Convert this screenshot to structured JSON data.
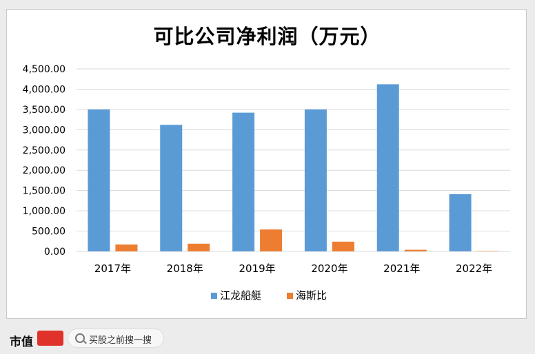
{
  "chart_data": {
    "type": "bar",
    "title": "可比公司净利润（万元）",
    "categories": [
      "2017年",
      "2018年",
      "2019年",
      "2020年",
      "2021年",
      "2022年"
    ],
    "series": [
      {
        "name": "江龙船艇",
        "color": "#5b9bd5",
        "values": [
          3500,
          3120,
          3420,
          3500,
          4120,
          1410
        ]
      },
      {
        "name": "海斯比",
        "color": "#ed7d31",
        "values": [
          170,
          190,
          540,
          240,
          40,
          10
        ]
      }
    ],
    "yticks": [
      "0.00",
      "500.00",
      "1,000.00",
      "1,500.00",
      "2,000.00",
      "2,500.00",
      "3,000.00",
      "3,500.00",
      "4,000.00",
      "4,500.00"
    ],
    "ylim": [
      0,
      4500
    ],
    "grid": true,
    "legend": "bottom"
  },
  "footer": {
    "brand": "市值",
    "search_placeholder": "买股之前搜一搜"
  },
  "icons": [
    "search-icon"
  ]
}
